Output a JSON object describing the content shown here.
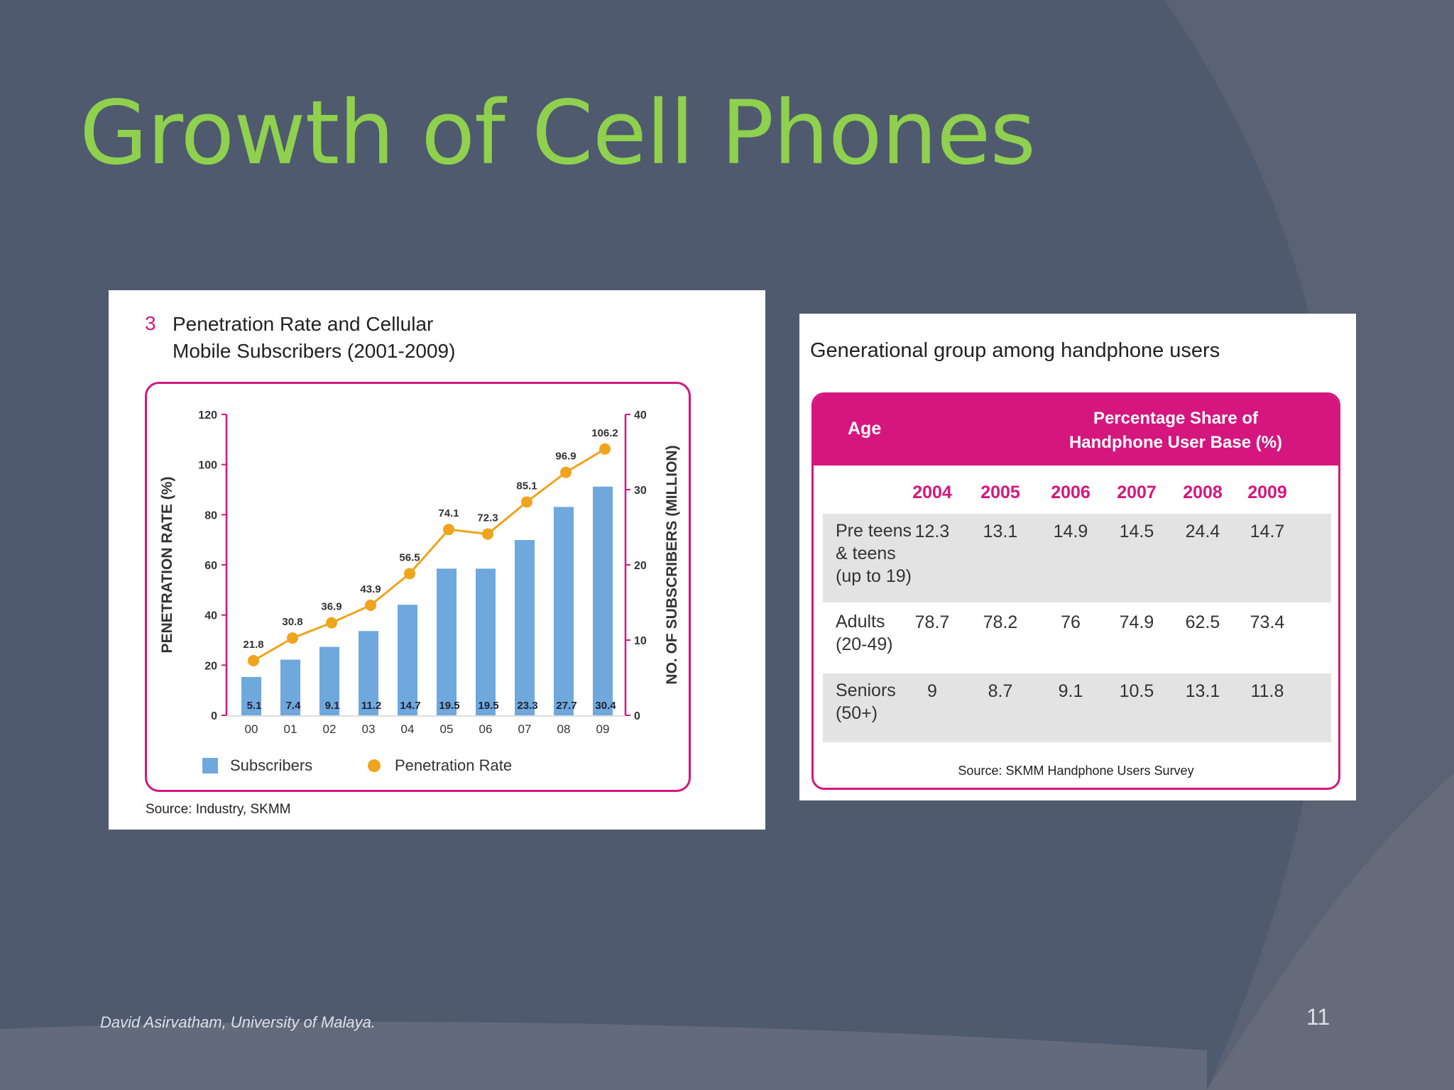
{
  "slide": {
    "title": "Growth of Cell Phones",
    "footer": "David Asirvatham,  University of Malaya.",
    "page_number": "11"
  },
  "chart_data": {
    "type": "bar",
    "figure_number": "3",
    "title_line1": "Penetration Rate and Cellular",
    "title_line2": "Mobile Subscribers (2001-2009)",
    "categories": [
      "00",
      "01",
      "02",
      "03",
      "04",
      "05",
      "06",
      "07",
      "08",
      "09"
    ],
    "series": [
      {
        "name": "Subscribers",
        "type": "bar",
        "axis": "right",
        "color": "#6fa8dc",
        "values": [
          5.1,
          7.4,
          9.1,
          11.2,
          14.7,
          19.5,
          19.5,
          23.3,
          27.7,
          30.4
        ]
      },
      {
        "name": "Penetration Rate",
        "type": "line",
        "axis": "left",
        "color": "#f0a31c",
        "values": [
          21.8,
          30.8,
          36.9,
          43.9,
          56.5,
          74.1,
          72.3,
          85.1,
          96.9,
          106.2
        ]
      }
    ],
    "ylabel": "PENETRATION RATE (%)",
    "ylim": [
      0,
      120
    ],
    "yticks": [
      "0",
      "20",
      "40",
      "60",
      "80",
      "100",
      "120"
    ],
    "y2label": "NO. OF SUBSCRIBERS (MILLION)",
    "y2lim": [
      0,
      40
    ],
    "y2ticks": [
      "0",
      "10",
      "20",
      "30",
      "40"
    ],
    "legend_position": "bottom",
    "source": "Source: Industry, SKMM"
  },
  "table": {
    "title": "Generational group among handphone users",
    "header_age": "Age",
    "header_pct_line1": "Percentage Share of",
    "header_pct_line2": "Handphone User Base (%)",
    "years": [
      "2004",
      "2005",
      "2006",
      "2007",
      "2008",
      "2009"
    ],
    "rows": [
      {
        "label": "Pre teens\n& teens\n(up to 19)",
        "values": [
          "12.3",
          "13.1",
          "14.9",
          "14.5",
          "24.4",
          "14.7"
        ]
      },
      {
        "label": "Adults\n(20-49)",
        "values": [
          "78.7",
          "78.2",
          "76",
          "74.9",
          "62.5",
          "73.4"
        ]
      },
      {
        "label": "Seniors\n(50+)",
        "values": [
          "9",
          "8.7",
          "9.1",
          "10.5",
          "13.1",
          "11.8"
        ]
      }
    ],
    "source": "Source: SKMM Handphone Users Survey",
    "accent_color": "#d6167f"
  }
}
